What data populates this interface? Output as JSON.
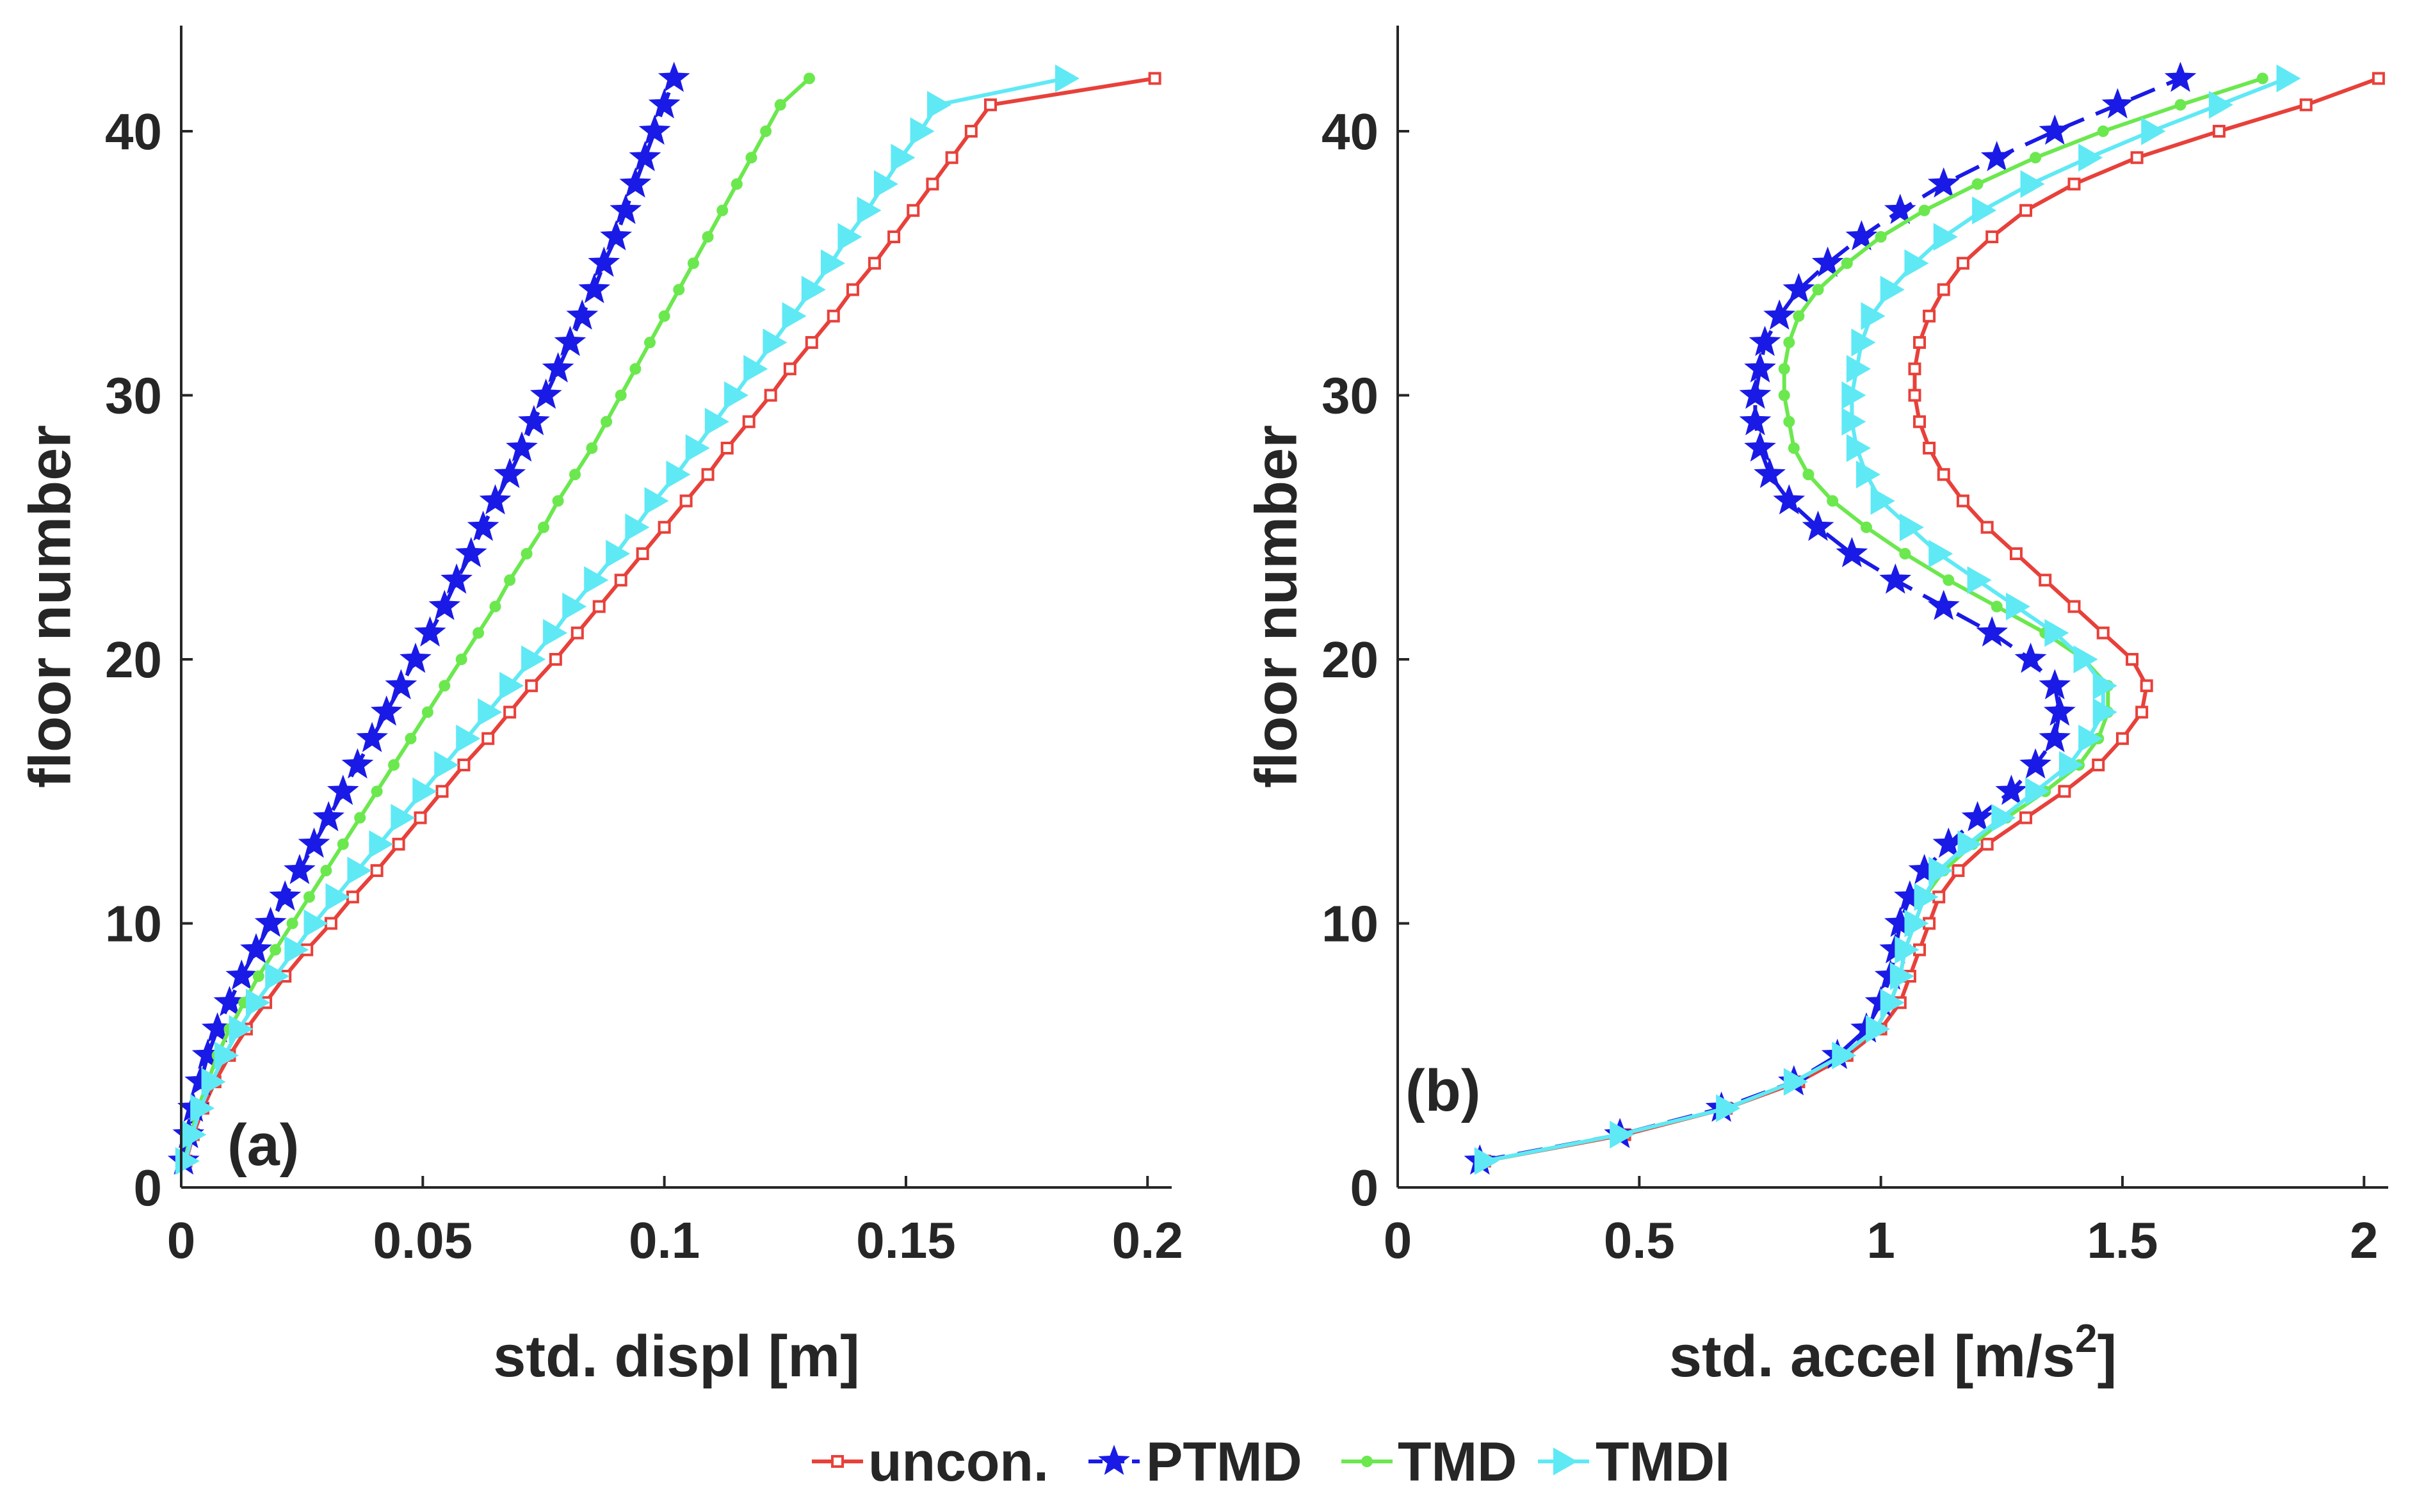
{
  "legend": [
    {
      "key": "uncon",
      "label": "uncon.",
      "color": "#e8403a",
      "marker": "square",
      "dash": "solid"
    },
    {
      "key": "ptmd",
      "label": "PTMD",
      "color": "#1a1ae6",
      "marker": "star",
      "dash": "dashed"
    },
    {
      "key": "tmd",
      "label": "TMD",
      "color": "#6be84e",
      "marker": "dot",
      "dash": "solid"
    },
    {
      "key": "tmdi",
      "label": "TMDI",
      "color": "#5fe9f5",
      "marker": "triangle-right",
      "dash": "solid"
    }
  ],
  "chart_data": [
    {
      "type": "line",
      "panel_label": "(a)",
      "xlabel": "std. displ [m]",
      "ylabel": "floor number",
      "xlim": [
        0,
        0.205
      ],
      "ylim": [
        0,
        44
      ],
      "xticks": [
        0,
        0.05,
        0.1,
        0.15,
        0.2
      ],
      "xtick_labels": [
        "0",
        "0.05",
        "0.1",
        "0.15",
        "0.2"
      ],
      "yticks": [
        0,
        10,
        20,
        30,
        40
      ],
      "ytick_labels": [
        "0",
        "10",
        "20",
        "30",
        "40"
      ],
      "grid": false,
      "floors": [
        1,
        2,
        3,
        4,
        5,
        6,
        7,
        8,
        9,
        10,
        11,
        12,
        13,
        14,
        15,
        16,
        17,
        18,
        19,
        20,
        21,
        22,
        23,
        24,
        25,
        26,
        27,
        28,
        29,
        30,
        31,
        32,
        33,
        34,
        35,
        36,
        37,
        38,
        39,
        40,
        41,
        42
      ],
      "series": [
        {
          "key": "uncon",
          "name": "uncon.",
          "values": [
            0.001,
            0.0025,
            0.0045,
            0.007,
            0.01,
            0.0135,
            0.0175,
            0.0215,
            0.026,
            0.031,
            0.0355,
            0.0405,
            0.045,
            0.0495,
            0.054,
            0.0585,
            0.0635,
            0.068,
            0.0725,
            0.0775,
            0.082,
            0.0865,
            0.091,
            0.0955,
            0.1,
            0.1045,
            0.109,
            0.113,
            0.1175,
            0.122,
            0.126,
            0.1305,
            0.135,
            0.139,
            0.1435,
            0.1475,
            0.1515,
            0.1555,
            0.1595,
            0.1635,
            0.1675,
            0.2015
          ]
        },
        {
          "key": "ptmd",
          "name": "PTMD",
          "values": [
            0.0005,
            0.0015,
            0.0025,
            0.004,
            0.0055,
            0.0075,
            0.01,
            0.0125,
            0.0155,
            0.0185,
            0.0215,
            0.0245,
            0.0275,
            0.0305,
            0.0335,
            0.0365,
            0.0395,
            0.0425,
            0.0455,
            0.0485,
            0.0515,
            0.0545,
            0.057,
            0.06,
            0.0625,
            0.065,
            0.068,
            0.0705,
            0.073,
            0.0755,
            0.078,
            0.0805,
            0.083,
            0.0855,
            0.0875,
            0.09,
            0.092,
            0.094,
            0.096,
            0.098,
            0.1,
            0.102
          ]
        },
        {
          "key": "tmd",
          "name": "TMD",
          "values": [
            0.0007,
            0.002,
            0.0035,
            0.0055,
            0.0075,
            0.01,
            0.013,
            0.016,
            0.0195,
            0.023,
            0.0265,
            0.03,
            0.0335,
            0.037,
            0.0405,
            0.044,
            0.0475,
            0.051,
            0.0545,
            0.058,
            0.0615,
            0.065,
            0.068,
            0.0715,
            0.075,
            0.078,
            0.0815,
            0.085,
            0.088,
            0.091,
            0.094,
            0.097,
            0.1,
            0.103,
            0.106,
            0.109,
            0.112,
            0.115,
            0.118,
            0.121,
            0.124,
            0.13
          ]
        },
        {
          "key": "tmdi",
          "name": "TMDI",
          "values": [
            0.0009,
            0.0023,
            0.004,
            0.0063,
            0.009,
            0.012,
            0.0155,
            0.0195,
            0.0235,
            0.0275,
            0.032,
            0.0365,
            0.041,
            0.0455,
            0.05,
            0.0545,
            0.059,
            0.0635,
            0.068,
            0.0725,
            0.077,
            0.081,
            0.0855,
            0.09,
            0.094,
            0.098,
            0.1025,
            0.1065,
            0.1105,
            0.1145,
            0.1185,
            0.1225,
            0.1265,
            0.1305,
            0.1345,
            0.138,
            0.142,
            0.1455,
            0.149,
            0.153,
            0.1565,
            0.183
          ]
        }
      ]
    },
    {
      "type": "line",
      "panel_label": "(b)",
      "xlabel": "std. accel [m/s",
      "xlabel_superscript": "2",
      "xlabel_suffix": "]",
      "ylabel": "floor number",
      "xlim": [
        0,
        2.05
      ],
      "ylim": [
        0,
        44
      ],
      "xticks": [
        0,
        0.5,
        1,
        1.5,
        2
      ],
      "xtick_labels": [
        "0",
        "0.5",
        "1",
        "1.5",
        "2"
      ],
      "yticks": [
        0,
        10,
        20,
        30,
        40
      ],
      "ytick_labels": [
        "0",
        "10",
        "20",
        "30",
        "40"
      ],
      "grid": false,
      "floors": [
        1,
        2,
        3,
        4,
        5,
        6,
        7,
        8,
        9,
        10,
        11,
        12,
        13,
        14,
        15,
        16,
        17,
        18,
        19,
        20,
        21,
        22,
        23,
        24,
        25,
        26,
        27,
        28,
        29,
        30,
        31,
        32,
        33,
        34,
        35,
        36,
        37,
        38,
        39,
        40,
        41,
        42
      ],
      "series": [
        {
          "key": "uncon",
          "name": "uncon.",
          "values": [
            0.18,
            0.47,
            0.68,
            0.83,
            0.93,
            1.0,
            1.04,
            1.06,
            1.08,
            1.1,
            1.12,
            1.16,
            1.22,
            1.3,
            1.38,
            1.45,
            1.5,
            1.54,
            1.55,
            1.52,
            1.46,
            1.4,
            1.34,
            1.28,
            1.22,
            1.17,
            1.13,
            1.1,
            1.08,
            1.07,
            1.07,
            1.08,
            1.1,
            1.13,
            1.17,
            1.23,
            1.3,
            1.4,
            1.53,
            1.7,
            1.88,
            2.03
          ]
        },
        {
          "key": "ptmd",
          "name": "PTMD",
          "values": [
            0.17,
            0.46,
            0.67,
            0.82,
            0.91,
            0.97,
            1.0,
            1.02,
            1.03,
            1.04,
            1.06,
            1.09,
            1.14,
            1.2,
            1.27,
            1.32,
            1.36,
            1.37,
            1.36,
            1.31,
            1.23,
            1.13,
            1.03,
            0.94,
            0.87,
            0.81,
            0.77,
            0.75,
            0.74,
            0.74,
            0.75,
            0.76,
            0.79,
            0.83,
            0.89,
            0.96,
            1.04,
            1.13,
            1.24,
            1.36,
            1.49,
            1.62
          ]
        },
        {
          "key": "tmd",
          "name": "TMD",
          "values": [
            0.18,
            0.46,
            0.68,
            0.82,
            0.92,
            0.99,
            1.02,
            1.04,
            1.05,
            1.07,
            1.09,
            1.13,
            1.19,
            1.26,
            1.34,
            1.41,
            1.45,
            1.47,
            1.47,
            1.42,
            1.34,
            1.24,
            1.14,
            1.05,
            0.97,
            0.9,
            0.85,
            0.82,
            0.81,
            0.8,
            0.8,
            0.81,
            0.83,
            0.87,
            0.93,
            1.0,
            1.09,
            1.2,
            1.32,
            1.46,
            1.62,
            1.79
          ]
        },
        {
          "key": "tmdi",
          "name": "TMDI",
          "values": [
            0.18,
            0.46,
            0.68,
            0.82,
            0.92,
            0.99,
            1.02,
            1.04,
            1.05,
            1.07,
            1.09,
            1.12,
            1.18,
            1.25,
            1.32,
            1.39,
            1.43,
            1.46,
            1.46,
            1.42,
            1.36,
            1.28,
            1.2,
            1.12,
            1.06,
            1.0,
            0.97,
            0.95,
            0.94,
            0.94,
            0.95,
            0.96,
            0.98,
            1.02,
            1.07,
            1.13,
            1.21,
            1.31,
            1.43,
            1.56,
            1.7,
            1.84
          ]
        }
      ]
    }
  ]
}
